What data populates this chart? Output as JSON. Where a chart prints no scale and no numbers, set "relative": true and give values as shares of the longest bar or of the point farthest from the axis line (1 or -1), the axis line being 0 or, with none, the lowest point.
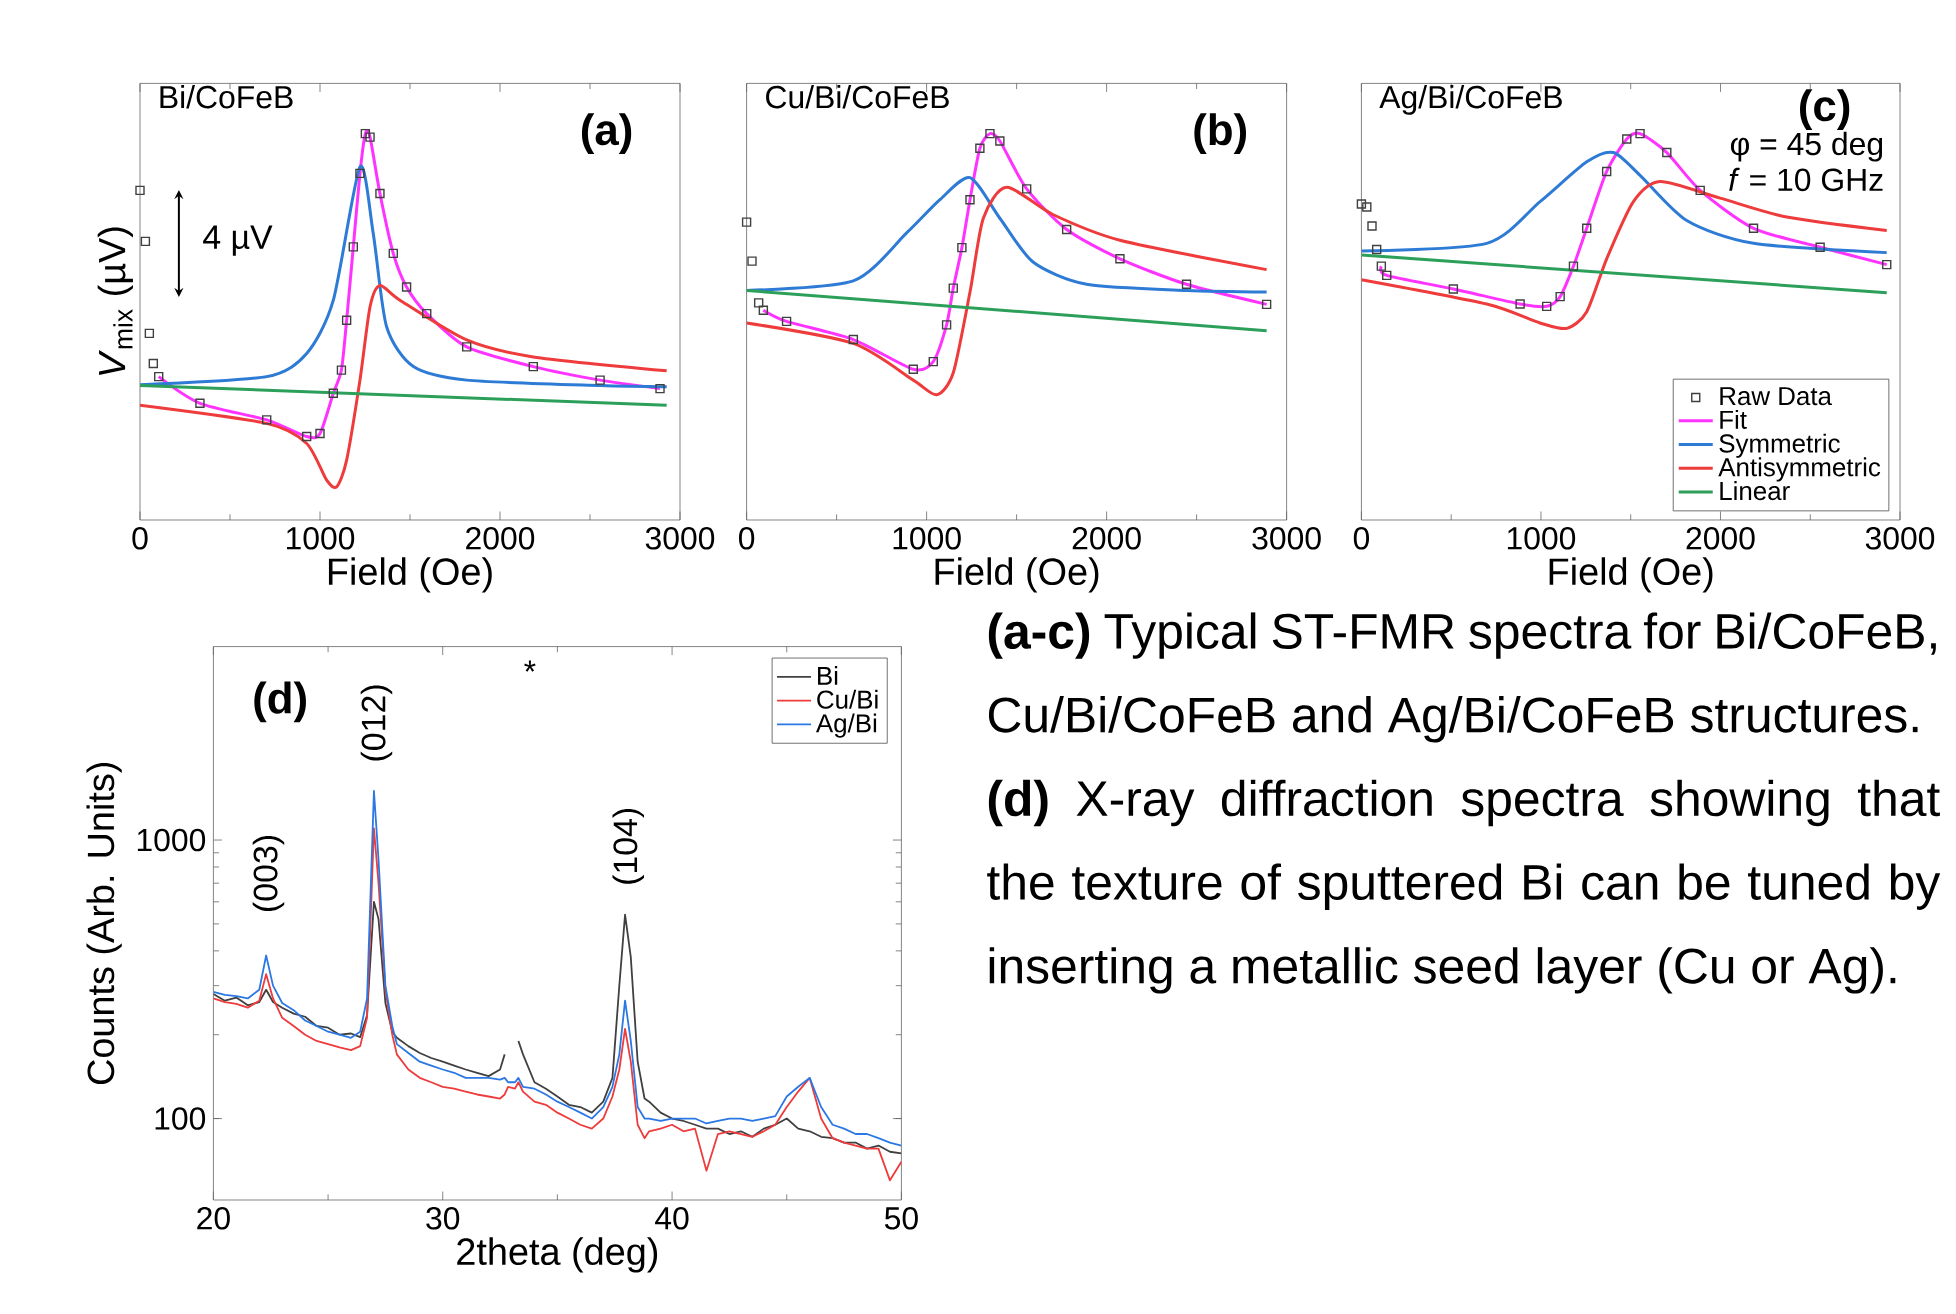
{
  "chart_data": [
    {
      "type": "line",
      "relative": true,
      "title": "Bi/CoFeB",
      "xlabel": "Field (Oe)",
      "ylabel": "*V*$_{mix}$ (µV)",
      "annotations": [
        "(a)",
        "4 µV"
      ],
      "xlim": [
        0,
        3000
      ],
      "xticks": [
        0,
        1000,
        2000,
        3000
      ],
      "tick_labels": "x",
      "series": [
        {
          "type": "scatter",
          "marker": "square",
          "color": "#404040",
          "x": [
            0,
            30,
            52,
            74,
            104,
            333,
            704,
            926,
            1000,
            1074,
            1119,
            1148,
            1185,
            1222,
            1252,
            1278,
            1333,
            1407,
            1481,
            1593,
            1815,
            2185,
            2556,
            2889
          ],
          "values": [
            0.853,
            0.721,
            0.483,
            0.405,
            0.371,
            0.302,
            0.259,
            0.216,
            0.224,
            0.328,
            0.388,
            0.517,
            0.707,
            0.897,
            1.0,
            0.991,
            0.845,
            0.69,
            0.603,
            0.534,
            0.448,
            0.397,
            0.362,
            0.34
          ]
        },
        {
          "type": "line",
          "color": "#ff33ff",
          "x": [
            104,
            333,
            704,
            926,
            1000,
            1074,
            1119,
            1148,
            1185,
            1222,
            1252,
            1278,
            1333,
            1407,
            1481,
            1593,
            1815,
            2185,
            2556,
            2889
          ],
          "values": [
            0.371,
            0.302,
            0.259,
            0.216,
            0.224,
            0.328,
            0.388,
            0.517,
            0.707,
            0.897,
            1.0,
            0.991,
            0.845,
            0.69,
            0.603,
            0.534,
            0.448,
            0.397,
            0.362,
            0.34
          ]
        },
        {
          "type": "line",
          "color": "#2e7bd6",
          "x": [
            0,
            704,
            926,
            1074,
            1222,
            1296,
            1370,
            1519,
            1815,
            2556,
            2926
          ],
          "values": [
            0.35,
            0.371,
            0.431,
            0.569,
            0.914,
            0.741,
            0.5,
            0.397,
            0.362,
            0.348,
            0.345
          ]
        },
        {
          "type": "line",
          "color": "#ee3b3b",
          "x": [
            0,
            704,
            926,
            1037,
            1093,
            1148,
            1222,
            1278,
            1333,
            1444,
            1815,
            2185,
            2926
          ],
          "values": [
            0.297,
            0.25,
            0.198,
            0.103,
            0.086,
            0.155,
            0.362,
            0.552,
            0.607,
            0.569,
            0.466,
            0.422,
            0.386
          ]
        },
        {
          "type": "line",
          "color": "#2ca05a",
          "x": [
            0,
            2926
          ],
          "values": [
            0.348,
            0.297
          ]
        }
      ]
    },
    {
      "type": "line",
      "relative": true,
      "title": "Cu/Bi/CoFeB",
      "xlabel": "Field (Oe)",
      "annotations": [
        "(b)"
      ],
      "xlim": [
        0,
        3000
      ],
      "xticks": [
        0,
        1000,
        2000,
        3000
      ],
      "tick_labels": "x",
      "series": [
        {
          "type": "scatter",
          "marker": "square",
          "color": "#404040",
          "x": [
            0,
            30,
            67,
            93,
            222,
            593,
            926,
            1037,
            1111,
            1148,
            1196,
            1241,
            1296,
            1352,
            1407,
            1556,
            1778,
            2074,
            2444,
            2889
          ],
          "values": [
            0.771,
            0.67,
            0.562,
            0.543,
            0.514,
            0.467,
            0.39,
            0.41,
            0.505,
            0.6,
            0.705,
            0.829,
            0.962,
            1.0,
            0.981,
            0.857,
            0.752,
            0.676,
            0.61,
            0.558
          ]
        },
        {
          "type": "line",
          "color": "#ff33ff",
          "x": [
            93,
            222,
            593,
            926,
            1037,
            1111,
            1148,
            1196,
            1241,
            1296,
            1352,
            1407,
            1556,
            1778,
            2074,
            2444,
            2889
          ],
          "values": [
            0.543,
            0.514,
            0.467,
            0.39,
            0.41,
            0.505,
            0.6,
            0.705,
            0.829,
            0.962,
            1.0,
            0.981,
            0.857,
            0.752,
            0.676,
            0.61,
            0.558
          ]
        },
        {
          "type": "line",
          "color": "#2e7bd6",
          "x": [
            0,
            593,
            889,
            1074,
            1241,
            1407,
            1593,
            1889,
            2444,
            2889
          ],
          "values": [
            0.594,
            0.619,
            0.743,
            0.829,
            0.886,
            0.781,
            0.667,
            0.61,
            0.594,
            0.59
          ]
        },
        {
          "type": "line",
          "color": "#ee3b3b",
          "x": [
            0,
            593,
            926,
            1056,
            1148,
            1241,
            1315,
            1444,
            1704,
            2074,
            2889
          ],
          "values": [
            0.51,
            0.457,
            0.362,
            0.324,
            0.381,
            0.59,
            0.781,
            0.861,
            0.79,
            0.724,
            0.648
          ]
        },
        {
          "type": "line",
          "color": "#2ca05a",
          "x": [
            0,
            2889
          ],
          "values": [
            0.594,
            0.49
          ]
        }
      ]
    },
    {
      "type": "line",
      "relative": true,
      "title": "Ag/Bi/CoFeB",
      "xlabel": "Field (Oe)",
      "annotations": [
        "(c)",
        "φ = 45 deg",
        "*f* = 10 GHz"
      ],
      "xlim": [
        0,
        3000
      ],
      "xticks": [
        0,
        1000,
        2000,
        3000
      ],
      "tick_labels": "x",
      "legend": "bottom right",
      "series": [
        {
          "name": "Raw Data",
          "type": "scatter",
          "marker": "square",
          "color": "#404040",
          "x": [
            0,
            30,
            59,
            85,
            111,
            141,
            512,
            884,
            1032,
            1107,
            1181,
            1255,
            1366,
            1478,
            1552,
            1701,
            1887,
            2184,
            2555,
            2926
          ],
          "values": [
            0.818,
            0.81,
            0.761,
            0.7,
            0.657,
            0.633,
            0.598,
            0.559,
            0.553,
            0.578,
            0.657,
            0.755,
            0.902,
            0.986,
            1.0,
            0.951,
            0.853,
            0.755,
            0.706,
            0.661
          ]
        },
        {
          "name": "Fit",
          "type": "line",
          "color": "#ff33ff",
          "x": [
            111,
            141,
            512,
            884,
            1032,
            1107,
            1181,
            1255,
            1366,
            1478,
            1552,
            1701,
            1887,
            2184,
            2555,
            2926
          ],
          "values": [
            0.657,
            0.633,
            0.598,
            0.559,
            0.553,
            0.578,
            0.657,
            0.755,
            0.902,
            0.986,
            1.0,
            0.951,
            0.853,
            0.755,
            0.706,
            0.661
          ]
        },
        {
          "name": "Symmetric",
          "type": "line",
          "color": "#2e7bd6",
          "x": [
            0,
            698,
            995,
            1255,
            1404,
            1552,
            1812,
            2184,
            2926
          ],
          "values": [
            0.696,
            0.716,
            0.824,
            0.927,
            0.951,
            0.892,
            0.775,
            0.716,
            0.692
          ]
        },
        {
          "name": "Antisymmetric",
          "type": "line",
          "color": "#ee3b3b",
          "x": [
            0,
            698,
            995,
            1144,
            1255,
            1366,
            1515,
            1664,
            1998,
            2369,
            2926
          ],
          "values": [
            0.622,
            0.559,
            0.51,
            0.496,
            0.539,
            0.676,
            0.824,
            0.876,
            0.833,
            0.784,
            0.749
          ]
        },
        {
          "name": "Linear",
          "type": "line",
          "color": "#2ca05a",
          "x": [
            0,
            2926
          ],
          "values": [
            0.686,
            0.588
          ]
        }
      ]
    },
    {
      "type": "line",
      "xlabel": "2theta (deg)",
      "ylabel": "Counts (Arb. Units)",
      "log": "y",
      "legend": "top right",
      "annotations": [
        "(d)",
        "(003)",
        "(012)",
        "*",
        "(104)"
      ],
      "xlim": [
        20,
        50
      ],
      "xticks": [
        20,
        30,
        40,
        50
      ],
      "ylim": [
        51,
        4950
      ],
      "yticks": [
        100,
        1000
      ],
      "x": [
        20,
        20.5,
        21,
        21.5,
        22,
        22.3,
        22.6,
        23,
        23.5,
        24,
        24.5,
        25,
        25.5,
        26,
        26.4,
        26.7,
        27,
        27.2,
        27.5,
        27.8,
        28,
        28.5,
        29,
        29.5,
        30,
        30.5,
        31,
        31.5,
        32,
        32.5,
        32.7,
        32.85,
        33.15,
        33.3,
        33.5,
        34,
        34.5,
        35,
        35.5,
        36,
        36.5,
        37,
        37.4,
        37.7,
        37.95,
        38.2,
        38.5,
        38.8,
        39,
        39.5,
        40,
        40.5,
        41,
        41.5,
        42,
        42.5,
        43,
        43.5,
        44,
        44.5,
        45,
        45.5,
        46,
        46.5,
        47,
        47.5,
        48,
        48.5,
        49,
        49.5,
        50
      ],
      "series": [
        {
          "name": "Bi",
          "color": "#404040",
          "values": [
            280,
            265,
            272,
            255,
            262,
            290,
            262,
            250,
            238,
            232,
            215,
            212,
            200,
            202,
            196,
            235,
            600,
            520,
            260,
            205,
            195,
            182,
            172,
            165,
            160,
            155,
            150,
            146,
            142,
            150,
            170,
            null,
            null,
            190,
            170,
            135,
            128,
            120,
            112,
            110,
            105,
            115,
            140,
            300,
            540,
            380,
            160,
            118,
            115,
            105,
            100,
            98,
            95,
            92,
            92,
            88,
            90,
            86,
            92,
            95,
            100,
            92,
            90,
            86,
            85,
            82,
            82,
            78,
            80,
            76,
            75
          ]
        },
        {
          "name": "Cu/Bi",
          "color": "#ee3b3b",
          "values": [
            270,
            262,
            258,
            250,
            265,
            330,
            270,
            230,
            215,
            200,
            190,
            185,
            180,
            176,
            182,
            230,
            1100,
            700,
            290,
            200,
            170,
            150,
            140,
            135,
            130,
            128,
            125,
            122,
            120,
            118,
            122,
            130,
            128,
            135,
            125,
            115,
            112,
            105,
            100,
            95,
            92,
            100,
            120,
            150,
            210,
            160,
            95,
            85,
            90,
            92,
            95,
            90,
            92,
            65,
            88,
            90,
            88,
            86,
            90,
            95,
            110,
            125,
            140,
            100,
            85,
            82,
            80,
            78,
            78,
            60,
            70
          ]
        },
        {
          "name": "Ag/Bi",
          "color": "#2b78e4",
          "values": [
            285,
            278,
            275,
            270,
            290,
            385,
            300,
            260,
            245,
            225,
            215,
            205,
            200,
            195,
            205,
            270,
            1500,
            850,
            300,
            215,
            185,
            172,
            160,
            155,
            150,
            146,
            140,
            140,
            140,
            138,
            140,
            135,
            135,
            140,
            130,
            128,
            122,
            115,
            110,
            105,
            100,
            110,
            130,
            170,
            265,
            190,
            110,
            100,
            100,
            98,
            100,
            100,
            100,
            96,
            98,
            100,
            100,
            98,
            100,
            102,
            120,
            130,
            140,
            110,
            95,
            92,
            88,
            88,
            85,
            82,
            80
          ]
        }
      ]
    },
    {
      "type": "other",
      "annotations": [
        "**(a-c)** Typical ST-FMR spectra for Bi/CoFeB, Cu/Bi/CoFeB and Ag/Bi/CoFeB structures.",
        "**(d)** X-ray diffraction spectra showing that the texture of sputtered Bi can be tuned by inserting a metallic seed layer (Cu or Ag)."
      ]
    }
  ]
}
